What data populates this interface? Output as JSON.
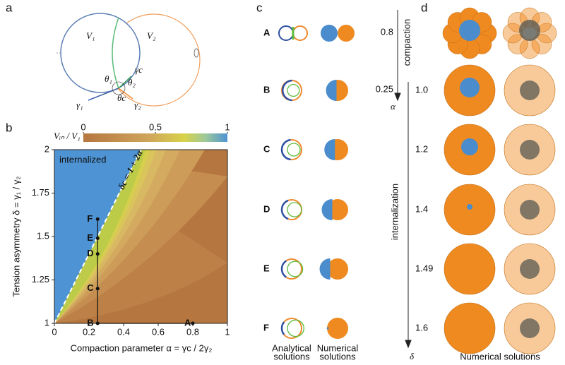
{
  "panel_labels": [
    "a",
    "b",
    "c",
    "d"
  ],
  "panel_a": {
    "labels": [
      "V₁",
      "V₂",
      "θ₁",
      "θ₂",
      "θc",
      "γc",
      "γ₁",
      "γ₂"
    ]
  },
  "chart_data": {
    "type": "contour",
    "x_label": "Compaction parameter  α = γc / 2γ₂",
    "y_label": "Tension asymmetry  δ = γ₁ / γ₂",
    "xlim": [
      0,
      1
    ],
    "ylim": [
      1,
      2
    ],
    "xticks": [
      0,
      0.2,
      0.4,
      0.6,
      0.8,
      1
    ],
    "yticks": [
      1,
      1.25,
      1.5,
      1.75,
      2
    ],
    "colorbar_label": "Vᵢₙ / V₁",
    "colorbar_lim": [
      0,
      1
    ],
    "colorbar_ticks": [
      0,
      0.5,
      1
    ],
    "region_label": "internalized",
    "boundary_label": "δc = 1 + 2α",
    "points": [
      {
        "label": "A",
        "x": 0.8,
        "y": 1
      },
      {
        "label": "B",
        "x": 0.25,
        "y": 1
      },
      {
        "label": "C",
        "x": 0.25,
        "y": 1.2
      },
      {
        "label": "D",
        "x": 0.25,
        "y": 1.4
      },
      {
        "label": "E",
        "x": 0.25,
        "y": 1.49
      },
      {
        "label": "F",
        "x": 0.25,
        "y": 1.6
      }
    ]
  },
  "panel_c": {
    "rows": [
      "A",
      "B",
      "C",
      "D",
      "E",
      "F"
    ],
    "captions": [
      [
        "Analytical",
        "solutions"
      ],
      [
        "Numerical",
        "solutions"
      ]
    ]
  },
  "panel_d": {
    "compaction_label": "compaction",
    "internalization_label": "internalization",
    "alpha_symbol": "α",
    "delta_symbol": "δ",
    "alpha_values": [
      "0.8",
      "0.25"
    ],
    "delta_values": [
      "1.0",
      "1.2",
      "1.4",
      "1.49",
      "1.6"
    ],
    "caption": "Numerical solutions"
  }
}
